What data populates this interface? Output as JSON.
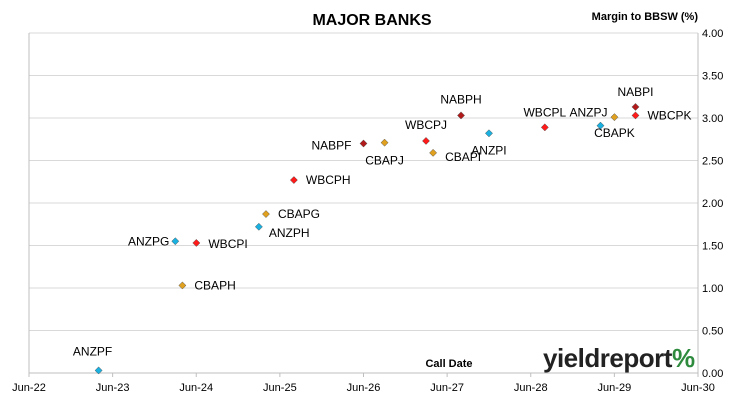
{
  "chart_data": {
    "type": "scatter",
    "title": "MAJOR BANKS",
    "xlabel": "Call Date",
    "ylabel": "Margin to BBSW (%)",
    "xlim": [
      "2022-06-01",
      "2030-06-01"
    ],
    "ylim": [
      0,
      4
    ],
    "x_ticks": [
      "Jun-22",
      "Jun-23",
      "Jun-24",
      "Jun-25",
      "Jun-26",
      "Jun-27",
      "Jun-28",
      "Jun-29",
      "Jun-30"
    ],
    "y_ticks": [
      "0.00",
      "0.50",
      "1.00",
      "1.50",
      "2.00",
      "2.50",
      "3.00",
      "3.50",
      "4.00"
    ],
    "grid": "horizontal",
    "legend": "none",
    "series": [
      {
        "color": "#1ab0e0",
        "marker": "diamond",
        "points": [
          {
            "label": "ANZPF",
            "x": "2023-04-01",
            "y": 0.03
          },
          {
            "label": "ANZPG",
            "x": "2024-03-01",
            "y": 1.55
          },
          {
            "label": "ANZPH",
            "x": "2025-03-01",
            "y": 1.72
          },
          {
            "label": "ANZPI",
            "x": "2027-12-01",
            "y": 2.82
          },
          {
            "label": "ANZPJ",
            "x": "2029-04-01",
            "y": 2.91
          }
        ]
      },
      {
        "color": "#ff1a1a",
        "marker": "diamond",
        "points": [
          {
            "label": "WBCPI",
            "x": "2024-06-01",
            "y": 1.53
          },
          {
            "label": "WBCPH",
            "x": "2025-08-01",
            "y": 2.27
          },
          {
            "label": "WBCPJ",
            "x": "2027-03-01",
            "y": 2.73
          },
          {
            "label": "WBCPL",
            "x": "2028-08-01",
            "y": 2.89
          },
          {
            "label": "WBCPK",
            "x": "2029-09-01",
            "y": 3.03
          }
        ]
      },
      {
        "color": "#e0a020",
        "marker": "diamond",
        "points": [
          {
            "label": "CBAPH",
            "x": "2024-04-01",
            "y": 1.03
          },
          {
            "label": "CBAPG",
            "x": "2025-04-01",
            "y": 1.87
          },
          {
            "label": "CBAPJ",
            "x": "2026-09-01",
            "y": 2.71
          },
          {
            "label": "CBAPI",
            "x": "2027-04-01",
            "y": 2.59
          },
          {
            "label": "CBAPK",
            "x": "2029-06-01",
            "y": 3.01
          }
        ]
      },
      {
        "color": "#b01a1a",
        "marker": "diamond",
        "points": [
          {
            "label": "NABPF",
            "x": "2026-06-01",
            "y": 2.7
          },
          {
            "label": "NABPH",
            "x": "2027-08-01",
            "y": 3.03
          },
          {
            "label": "NABPI",
            "x": "2029-09-01",
            "y": 3.13
          }
        ]
      }
    ]
  },
  "branding": {
    "word": "yieldreport",
    "symbol": "%",
    "symbol_colors": [
      "#2e8b3e",
      "#d42020"
    ]
  }
}
